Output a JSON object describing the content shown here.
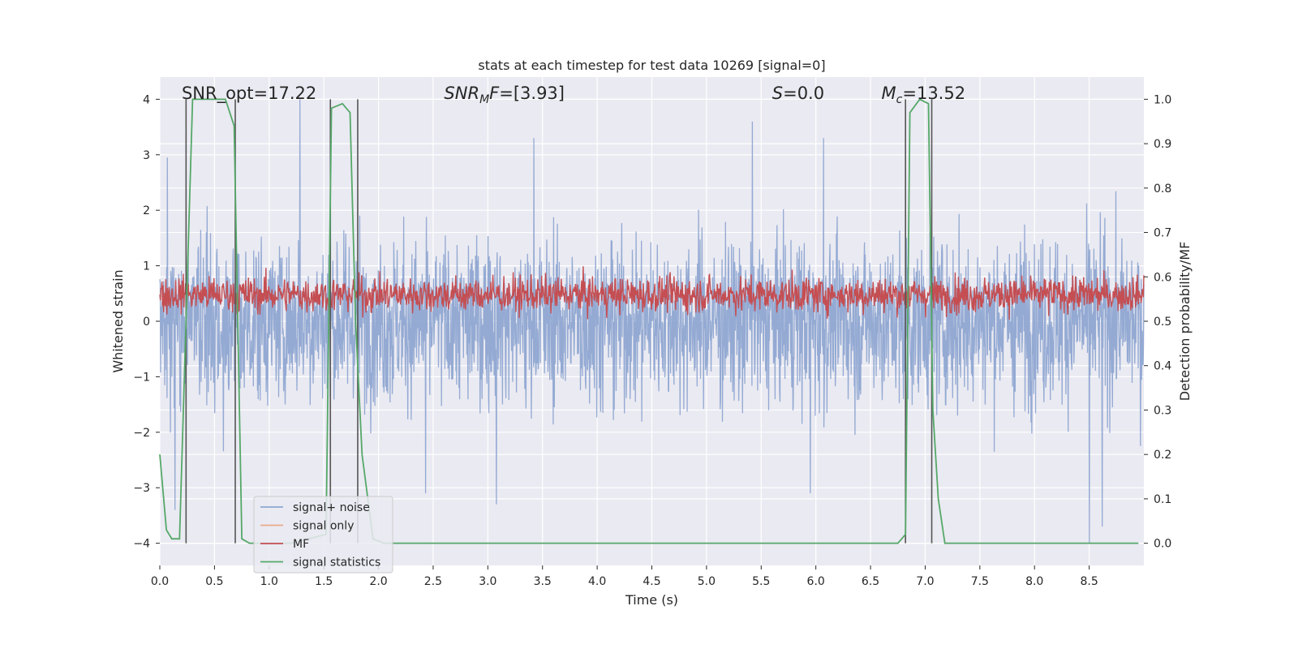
{
  "chart_data": {
    "type": "line",
    "title": "stats at each timestep for test data 10269 [signal=0]",
    "xlabel": "Time (s)",
    "ylabel_left": "Whitened strain",
    "ylabel_right": "Detection probability/MF",
    "xlim": [
      0.0,
      9.0
    ],
    "ylim_left": [
      -4.4,
      4.4
    ],
    "ylim_right": [
      -0.05,
      1.05
    ],
    "xticks": [
      0.0,
      0.5,
      1.0,
      1.5,
      2.0,
      2.5,
      3.0,
      3.5,
      4.0,
      4.5,
      5.0,
      5.5,
      6.0,
      6.5,
      7.0,
      7.5,
      8.0,
      8.5
    ],
    "xtick_labels": [
      "0.0",
      "0.5",
      "1.0",
      "1.5",
      "2.0",
      "2.5",
      "3.0",
      "3.5",
      "4.0",
      "4.5",
      "5.0",
      "5.5",
      "6.0",
      "6.5",
      "7.0",
      "7.5",
      "8.0",
      "8.5"
    ],
    "yticks_left": [
      4,
      3,
      2,
      1,
      0,
      -1,
      -2,
      -3,
      -4
    ],
    "ytick_labels_left": [
      "4",
      "3",
      "2",
      "1",
      "0",
      "−1",
      "−2",
      "−3",
      "−4"
    ],
    "yticks_right": [
      1.0,
      0.9,
      0.8,
      0.7,
      0.6,
      0.5,
      0.4,
      0.3,
      0.2,
      0.1,
      0.0
    ],
    "ytick_labels_right": [
      "1.0",
      "0.9",
      "0.8",
      "0.7",
      "0.6",
      "0.5",
      "0.4",
      "0.3",
      "0.2",
      "0.1",
      "0.0"
    ],
    "grid": true,
    "legend_position": "lower-left",
    "annotations": {
      "snr_opt": "SNR_opt=17.22",
      "snr_mf_main": "SNR",
      "snr_mf_sub": "M",
      "snr_mf_rest": "F",
      "snr_mf_value": "=[3.93]",
      "s_main": "S",
      "s_value": "=0.0",
      "mc_main": "M",
      "mc_sub": "c",
      "mc_value": "=13.52"
    },
    "series": [
      {
        "name": "signal+ noise",
        "color": "#8fa7d1",
        "axis": "left",
        "description_peaks": "noisy whitened strain, roughly within ±2, occasional peaks near ±3.5",
        "peaks": [
          {
            "x": 0.07,
            "y": 2.95
          },
          {
            "x": 1.28,
            "y": 4.0
          },
          {
            "x": 3.42,
            "y": 3.3
          },
          {
            "x": 5.42,
            "y": 3.6
          },
          {
            "x": 6.07,
            "y": 3.3
          },
          {
            "x": 2.43,
            "y": -3.1
          },
          {
            "x": 3.08,
            "y": -3.3
          },
          {
            "x": 5.95,
            "y": -3.1
          },
          {
            "x": 8.5,
            "y": -4.0
          },
          {
            "x": 8.62,
            "y": -3.7
          },
          {
            "x": 0.14,
            "y": -3.4
          }
        ]
      },
      {
        "name": "signal only",
        "color": "#e8a98d",
        "axis": "left",
        "values": []
      },
      {
        "name": "MF",
        "color": "#c44e52",
        "axis": "right",
        "baseline": 0.56,
        "range": [
          0.5,
          0.67
        ]
      },
      {
        "name": "signal statistics",
        "color": "#55a868",
        "axis": "right",
        "x": [
          0.0,
          0.06,
          0.11,
          0.18,
          0.24,
          0.3,
          0.45,
          0.6,
          0.68,
          0.75,
          0.82,
          1.2,
          1.52,
          1.57,
          1.67,
          1.74,
          1.79,
          1.85,
          1.95,
          2.05,
          6.75,
          6.82,
          6.86,
          6.95,
          7.03,
          7.07,
          7.12,
          7.18,
          8.95
        ],
        "y": [
          0.2,
          0.03,
          0.01,
          0.01,
          0.5,
          1.0,
          1.0,
          1.0,
          0.94,
          0.01,
          0.0,
          0.0,
          0.02,
          0.98,
          0.99,
          0.97,
          0.5,
          0.2,
          0.01,
          0.0,
          0.0,
          0.02,
          0.97,
          1.0,
          0.99,
          0.3,
          0.1,
          0.0,
          0.0
        ]
      }
    ],
    "vlines": [
      0.24,
      0.69,
      1.56,
      1.81,
      6.82,
      7.06
    ],
    "vline_range_left": [
      -4,
      4
    ],
    "vline_color": "#555555"
  },
  "legend": {
    "items": [
      {
        "label": "signal+ noise",
        "color": "#8fa7d1"
      },
      {
        "label": "signal only",
        "color": "#e8a98d"
      },
      {
        "label": "MF",
        "color": "#c44e52"
      },
      {
        "label": "signal statistics",
        "color": "#55a868"
      }
    ]
  },
  "colors": {
    "plot_background": "#eaeaf2",
    "grid": "#ffffff"
  }
}
